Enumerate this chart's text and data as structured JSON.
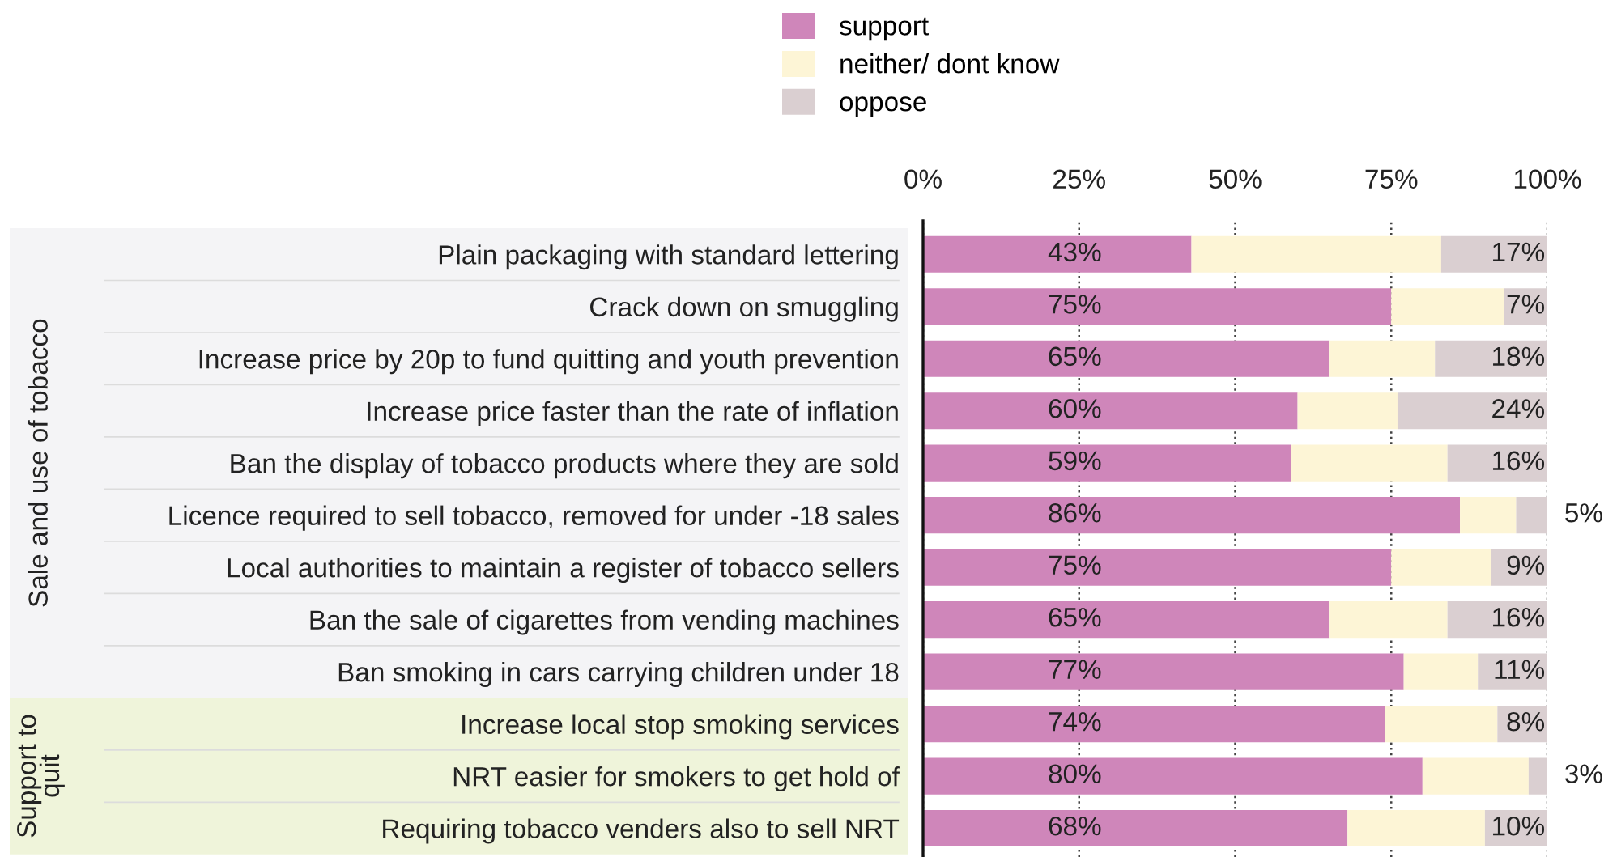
{
  "chart_data": {
    "type": "bar",
    "orientation": "horizontal",
    "stacked": true,
    "categories": [
      "Plain packaging with standard lettering",
      "Crack down on smuggling",
      "Increase price by 20p to fund quitting and youth prevention",
      "Increase price faster than the rate of inflation",
      "Ban the display of tobacco products where they are sold",
      "Licence required to sell tobacco, removed for under -18 sales",
      "Local authorities to maintain a register of tobacco sellers",
      "Ban the sale of cigarettes from vending machines",
      "Ban smoking in cars carrying children under 18",
      "Increase local stop smoking services",
      "NRT easier for smokers to get hold of",
      "Requiring tobacco venders also to sell NRT"
    ],
    "series": [
      {
        "name": "support",
        "color": "#cf86ba",
        "values": [
          43,
          75,
          65,
          60,
          59,
          86,
          75,
          65,
          77,
          74,
          80,
          68
        ],
        "value_labels": [
          "43%",
          "75%",
          "65%",
          "60%",
          "59%",
          "86%",
          "75%",
          "65%",
          "77%",
          "74%",
          "80%",
          "68%"
        ]
      },
      {
        "name": "neither/ dont know",
        "color": "#fdf5d6",
        "values": [
          40,
          18,
          17,
          16,
          25,
          9,
          16,
          19,
          12,
          18,
          17,
          22
        ]
      },
      {
        "name": "oppose",
        "color": "#dacfd1",
        "values": [
          17,
          7,
          18,
          24,
          16,
          5,
          9,
          16,
          11,
          8,
          3,
          10
        ],
        "value_labels": [
          "17%",
          "7%",
          "18%",
          "24%",
          "16%",
          "5%",
          "9%",
          "16%",
          "11%",
          "8%",
          "3%",
          "10%"
        ]
      }
    ],
    "xlim": [
      0,
      100
    ],
    "xticks": [
      {
        "value": 0,
        "label": "0%"
      },
      {
        "value": 25,
        "label": "25%"
      },
      {
        "value": 50,
        "label": "50%"
      },
      {
        "value": 75,
        "label": "75%"
      },
      {
        "value": 100,
        "label": "100%"
      }
    ],
    "grid": "x",
    "legend": "top",
    "annotations": [
      "Sale and use of tobacco",
      "Support to\nquit"
    ]
  }
}
